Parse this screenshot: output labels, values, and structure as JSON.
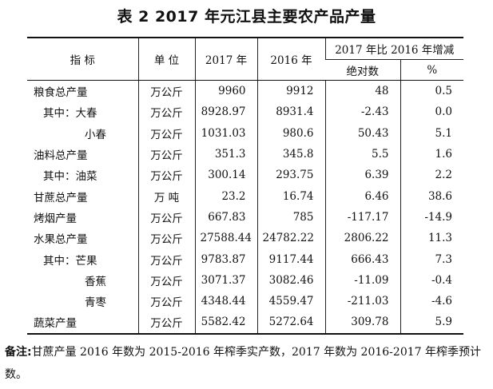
{
  "title": "表 2   2017 年元江县主要农产品产量",
  "table": {
    "headers": {
      "indicator": "指    标",
      "unit": "单  位",
      "y2017": "2017 年",
      "y2016": "2016 年",
      "change_group": "2017 年比 2016 年增减",
      "absolute": "绝对数",
      "percent": "%"
    },
    "rows": [
      {
        "name": "粮食总产量",
        "unit": "万公斤",
        "y2017": "9960",
        "y2016": "9912",
        "abs": "48",
        "pct": "0.5"
      },
      {
        "name": "其中：大春",
        "unit": "万公斤",
        "y2017": "8928.97",
        "y2016": "8931.4",
        "abs": "-2.43",
        "pct": "0.0"
      },
      {
        "name": "小春",
        "unit": "万公斤",
        "y2017": "1031.03",
        "y2016": "980.6",
        "abs": "50.43",
        "pct": "5.1"
      },
      {
        "name": "油料总产量",
        "unit": "万公斤",
        "y2017": "351.3",
        "y2016": "345.8",
        "abs": "5.5",
        "pct": "1.6"
      },
      {
        "name": "其中：油菜",
        "unit": "万公斤",
        "y2017": "300.14",
        "y2016": "293.75",
        "abs": "6.39",
        "pct": "2.2"
      },
      {
        "name": "甘蔗总产量",
        "unit": "万  吨",
        "y2017": "23.2",
        "y2016": "16.74",
        "abs": "6.46",
        "pct": "38.6"
      },
      {
        "name": "烤烟产量",
        "unit": "万公斤",
        "y2017": "667.83",
        "y2016": "785",
        "abs": "-117.17",
        "pct": "-14.9"
      },
      {
        "name": "水果总产量",
        "unit": "万公斤",
        "y2017": "27588.44",
        "y2016": "24782.22",
        "abs": "2806.22",
        "pct": "11.3"
      },
      {
        "name": "其中：芒果",
        "unit": "万公斤",
        "y2017": "9783.87",
        "y2016": "9117.44",
        "abs": "666.43",
        "pct": "7.3"
      },
      {
        "name": "香蕉",
        "unit": "万公斤",
        "y2017": "3071.37",
        "y2016": "3082.46",
        "abs": "-11.09",
        "pct": "-0.4"
      },
      {
        "name": "青枣",
        "unit": "万公斤",
        "y2017": "4348.44",
        "y2016": "4559.47",
        "abs": "-211.03",
        "pct": "-4.6"
      },
      {
        "name": "蔬菜产量",
        "unit": "万公斤",
        "y2017": "5582.42",
        "y2016": "5272.64",
        "abs": "309.78",
        "pct": "5.9"
      }
    ]
  },
  "note": {
    "lead": "备注:",
    "text": "甘蔗产量 2016 年数为 2015-2016 年榨季实产数，2017 年数为 2016-2017 年榨季预计数。"
  }
}
